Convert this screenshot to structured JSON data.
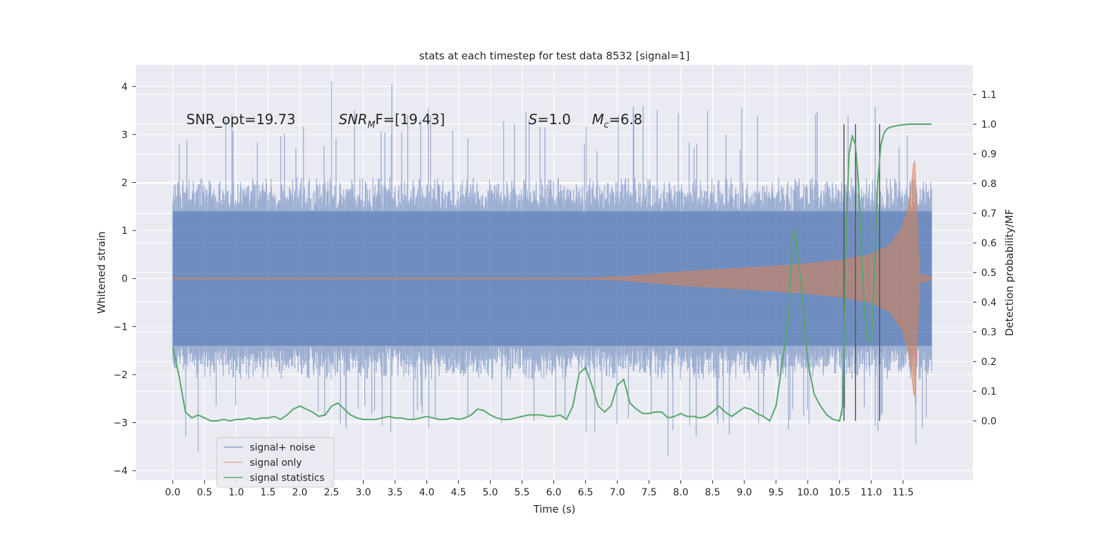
{
  "chart_data": {
    "type": "line",
    "title": "stats at each timestep for test data 8532 [signal=1]",
    "xlabel": "Time (s)",
    "ylabel": "Whitened strain",
    "y2label": "Detection probability/MF",
    "xlim": [
      -0.58,
      12.6
    ],
    "ylim": [
      -4.2,
      4.45
    ],
    "y2lim": [
      -0.2,
      1.2
    ],
    "xticks": [
      "0.0",
      "0.5",
      "1.0",
      "1.5",
      "2.0",
      "2.5",
      "3.0",
      "3.5",
      "4.0",
      "4.5",
      "5.0",
      "5.5",
      "6.0",
      "6.5",
      "7.0",
      "7.5",
      "8.0",
      "8.5",
      "9.0",
      "9.5",
      "10.0",
      "10.5",
      "11.0",
      "11.5"
    ],
    "yticks": [
      "4",
      "3",
      "2",
      "1",
      "0",
      "−1",
      "−2",
      "−3",
      "−4"
    ],
    "y2ticks": [
      "1.1",
      "1.0",
      "0.9",
      "0.8",
      "0.7",
      "0.6",
      "0.5",
      "0.4",
      "0.3",
      "0.2",
      "0.1",
      "0.0"
    ],
    "grid": true,
    "legend_position": "lower-left",
    "annotations": {
      "snr_opt": "SNR_opt=19.73",
      "snr_mf_italic": "SNR",
      "snr_mf_sub": "M",
      "snr_mf_rest": "F=[19.43]",
      "s_italic": "S",
      "s_rest": "=1.0",
      "mc_italic": "M",
      "mc_sub": "c",
      "mc_rest": "=6.8"
    },
    "vlines_x": [
      10.57,
      10.75,
      11.13
    ],
    "vlines_range": [
      0.0,
      1.0
    ],
    "series": [
      {
        "name": "signal+ noise",
        "color": "#4c72b0",
        "axis": "left",
        "time_range": [
          0.0,
          11.95
        ],
        "band_inner": 1.4,
        "band_outer": 2.3,
        "max": 4.1,
        "min": -3.7
      },
      {
        "name": "signal only",
        "color": "#dd8452",
        "axis": "left",
        "envelope_t": [
          0.0,
          6.5,
          7.0,
          7.5,
          8.0,
          8.5,
          9.0,
          9.5,
          10.0,
          10.5,
          11.0,
          11.3,
          11.5,
          11.6,
          11.65,
          11.68,
          11.7,
          11.75,
          11.95
        ],
        "envelope_amp": [
          0.01,
          0.01,
          0.03,
          0.08,
          0.14,
          0.18,
          0.22,
          0.26,
          0.31,
          0.38,
          0.5,
          0.7,
          1.1,
          1.6,
          2.2,
          2.6,
          2.2,
          0.1,
          0.02
        ]
      },
      {
        "name": "signal statistics",
        "color": "#55a868",
        "axis": "right",
        "x": [
          0.0,
          0.1,
          0.2,
          0.3,
          0.4,
          0.5,
          0.6,
          0.7,
          0.8,
          0.9,
          1.0,
          1.1,
          1.2,
          1.3,
          1.4,
          1.5,
          1.6,
          1.7,
          1.8,
          1.9,
          2.0,
          2.1,
          2.2,
          2.3,
          2.4,
          2.5,
          2.6,
          2.7,
          2.8,
          2.9,
          3.0,
          3.1,
          3.2,
          3.3,
          3.4,
          3.5,
          3.6,
          3.7,
          3.8,
          3.9,
          4.0,
          4.1,
          4.2,
          4.3,
          4.4,
          4.5,
          4.6,
          4.7,
          4.8,
          4.9,
          5.0,
          5.1,
          5.2,
          5.3,
          5.4,
          5.5,
          5.6,
          5.7,
          5.8,
          5.9,
          6.0,
          6.1,
          6.2,
          6.3,
          6.4,
          6.5,
          6.6,
          6.7,
          6.8,
          6.9,
          7.0,
          7.1,
          7.2,
          7.3,
          7.4,
          7.5,
          7.6,
          7.7,
          7.8,
          7.9,
          8.0,
          8.1,
          8.2,
          8.3,
          8.4,
          8.5,
          8.6,
          8.7,
          8.8,
          8.9,
          9.0,
          9.1,
          9.2,
          9.3,
          9.4,
          9.5,
          9.6,
          9.7,
          9.75,
          9.8,
          9.9,
          10.0,
          10.1,
          10.2,
          10.3,
          10.4,
          10.5,
          10.55,
          10.6,
          10.65,
          10.7,
          10.75,
          10.8,
          10.85,
          10.9,
          10.95,
          11.0,
          11.05,
          11.1,
          11.15,
          11.2,
          11.25,
          11.3,
          11.4,
          11.5,
          11.6,
          11.7,
          11.8,
          11.95
        ],
        "values": [
          0.25,
          0.15,
          0.03,
          0.01,
          0.02,
          0.01,
          0.0,
          0.0,
          0.005,
          0.0,
          0.005,
          0.005,
          0.01,
          0.005,
          0.01,
          0.01,
          0.015,
          0.005,
          0.02,
          0.04,
          0.05,
          0.04,
          0.03,
          0.015,
          0.02,
          0.05,
          0.06,
          0.04,
          0.02,
          0.01,
          0.005,
          0.005,
          0.005,
          0.01,
          0.015,
          0.01,
          0.01,
          0.005,
          0.005,
          0.01,
          0.015,
          0.01,
          0.005,
          0.005,
          0.01,
          0.005,
          0.01,
          0.02,
          0.04,
          0.035,
          0.02,
          0.01,
          0.005,
          0.005,
          0.01,
          0.015,
          0.02,
          0.02,
          0.02,
          0.015,
          0.015,
          0.02,
          0.005,
          0.05,
          0.16,
          0.18,
          0.12,
          0.05,
          0.03,
          0.05,
          0.12,
          0.14,
          0.06,
          0.04,
          0.025,
          0.025,
          0.03,
          0.03,
          0.01,
          0.015,
          0.025,
          0.015,
          0.015,
          0.01,
          0.015,
          0.03,
          0.05,
          0.03,
          0.015,
          0.03,
          0.045,
          0.04,
          0.025,
          0.015,
          0.0,
          0.05,
          0.2,
          0.35,
          0.62,
          0.64,
          0.45,
          0.2,
          0.09,
          0.05,
          0.02,
          0.005,
          0.0,
          0.05,
          0.6,
          0.9,
          0.96,
          0.93,
          0.8,
          0.55,
          0.35,
          0.27,
          0.27,
          0.5,
          0.8,
          0.93,
          0.97,
          0.985,
          0.99,
          0.995,
          0.998,
          1.0,
          1.0,
          1.0,
          1.0
        ]
      }
    ]
  }
}
